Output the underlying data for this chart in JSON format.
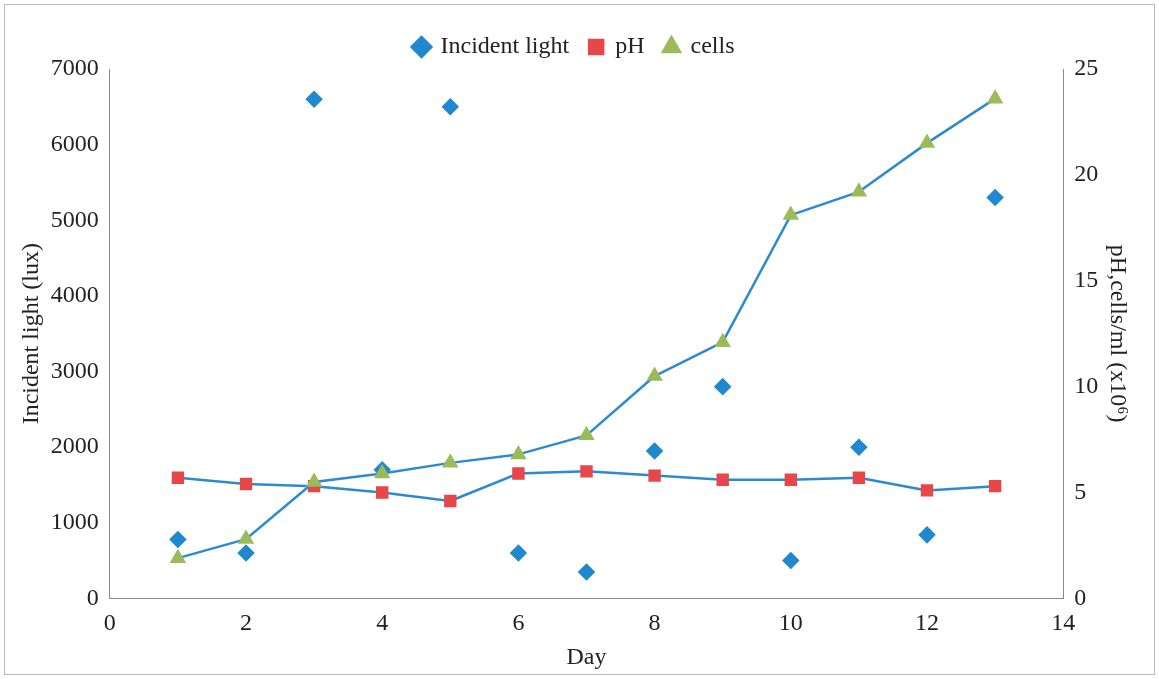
{
  "chart_data": {
    "type": "scatter",
    "xlabel": "Day",
    "ylabel": "Incident light (lux)",
    "y2label": "pH,cells/ml (x10⁶)",
    "x": [
      1,
      2,
      3,
      4,
      5,
      6,
      7,
      8,
      9,
      10,
      11,
      12,
      13
    ],
    "xlim": [
      0,
      14
    ],
    "xticks": [
      0,
      2,
      4,
      6,
      8,
      10,
      12,
      14
    ],
    "ylim": [
      0,
      7000
    ],
    "yticks": [
      0,
      1000,
      2000,
      3000,
      4000,
      5000,
      6000,
      7000
    ],
    "y2lim": [
      0,
      25
    ],
    "y2ticks": [
      0,
      5,
      10,
      15,
      20,
      25
    ],
    "grid": false,
    "legend": "top",
    "series": [
      {
        "name": "Incident light",
        "type": "scatter",
        "marker": "diamond",
        "color": "#1f88cf",
        "values": [
          780,
          600,
          6600,
          1700,
          6500,
          600,
          350,
          1950,
          2800,
          500,
          2000,
          840,
          5300
        ]
      },
      {
        "name": "pH",
        "type": "line",
        "axis": "y2",
        "marker": "square",
        "color": "#2e8ad0",
        "colors": [
          "#e8474a",
          "#e8474a",
          "#e8474a",
          "#e8474a",
          "#e8474a",
          "#e8474a",
          "#e8474a",
          "#e8474a",
          "#e8474a",
          "#e8474a",
          "#e8474a",
          "#e8474a",
          "#e8474a"
        ],
        "values": [
          5.7,
          5.4,
          5.3,
          5.0,
          4.6,
          5.9,
          6.0,
          5.8,
          5.6,
          5.6,
          5.7,
          5.1,
          5.3
        ]
      },
      {
        "name": "cells",
        "type": "line",
        "axis": "y2",
        "marker": "triangle",
        "color": "#2e8ad0",
        "colors": [
          "#9bbb59",
          "#9bbb59",
          "#9bbb59",
          "#9bbb59",
          "#9bbb59",
          "#9bbb59",
          "#9bbb59",
          "#9bbb59",
          "#9bbb59",
          "#9bbb59",
          "#9bbb59",
          "#9bbb59",
          "#9bbb59"
        ],
        "values": [
          1.9,
          2.8,
          5.5,
          5.9,
          6.4,
          6.8,
          7.7,
          10.5,
          12.1,
          18.1,
          19.2,
          21.5,
          23.6
        ]
      }
    ]
  }
}
